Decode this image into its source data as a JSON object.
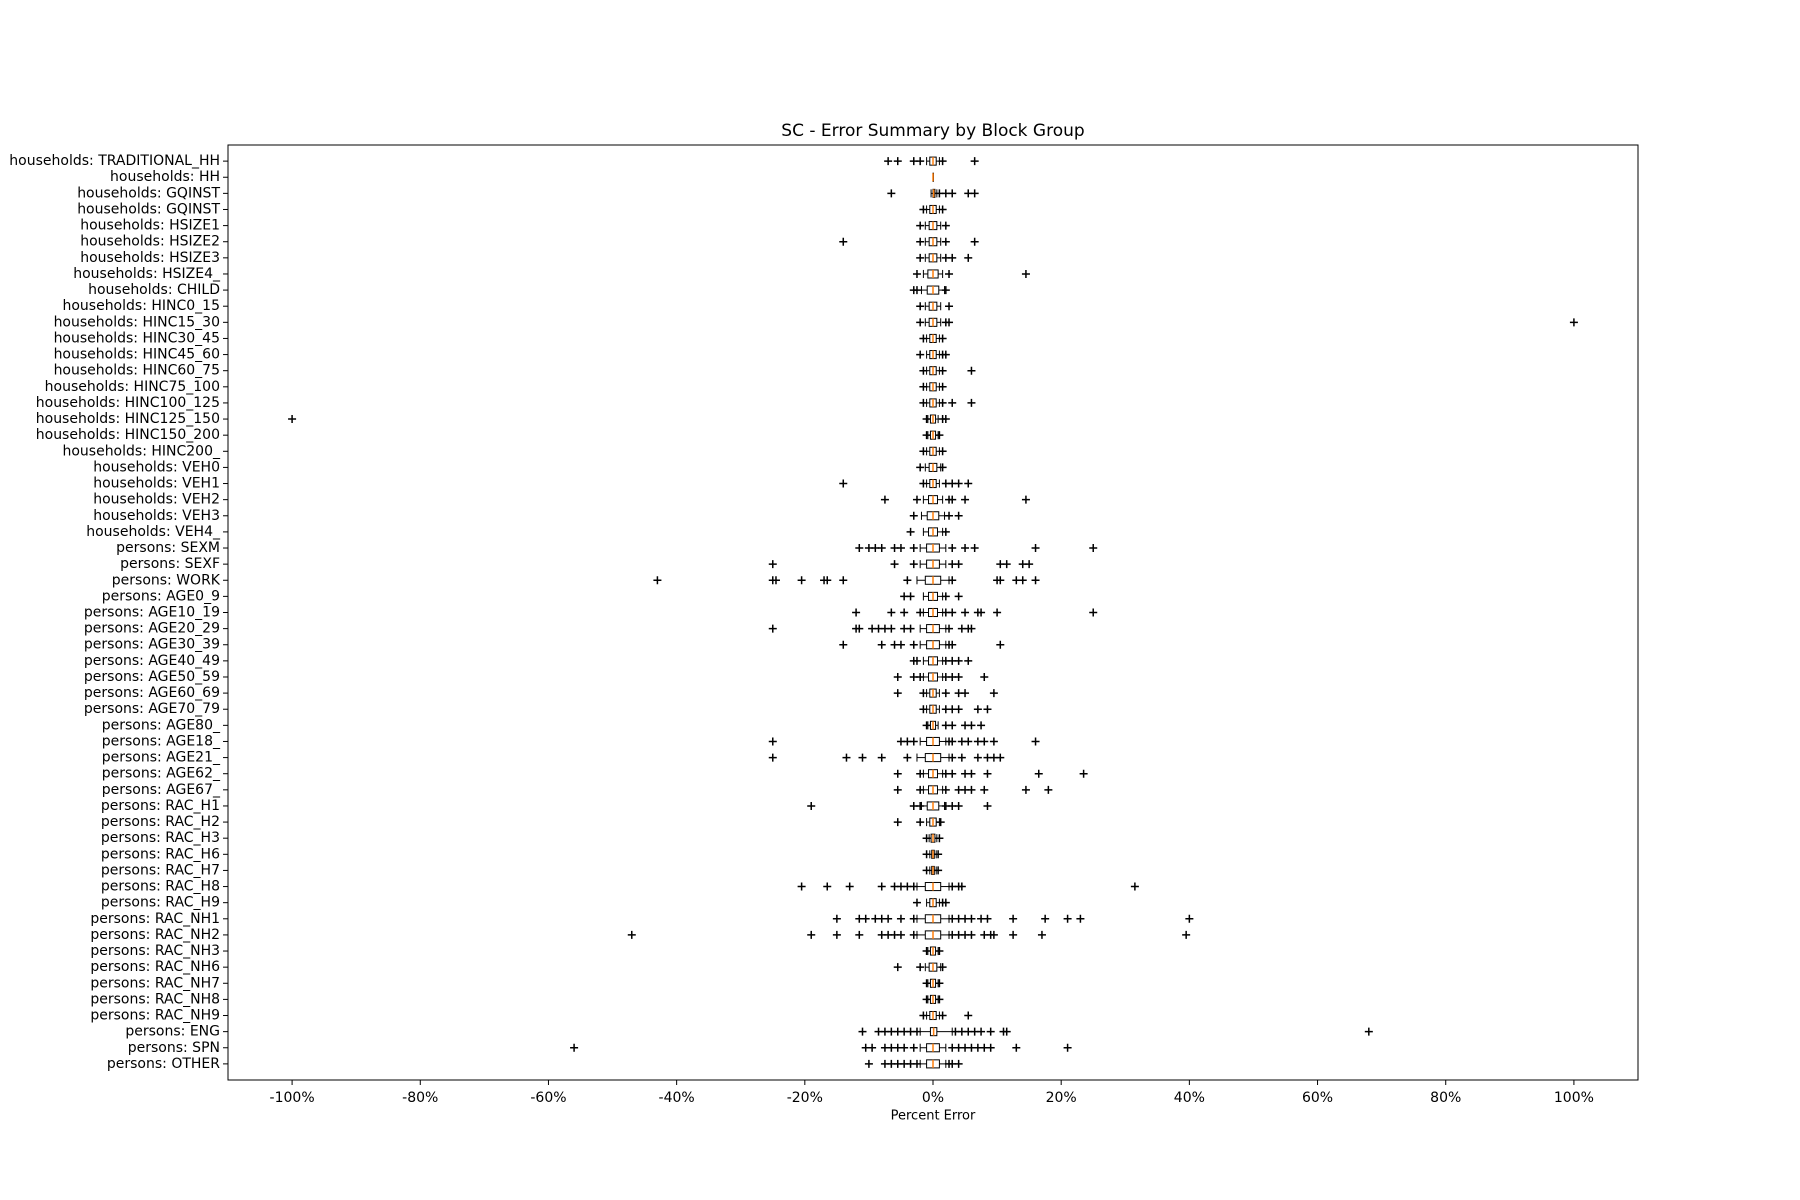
{
  "chart_data": {
    "type": "boxplot",
    "title": "SC - Error Summary by Block Group",
    "xlabel": "Percent Error",
    "xlim": [
      -110,
      110
    ],
    "xticks": [
      {
        "value": -100,
        "label": "-100%"
      },
      {
        "value": -80,
        "label": "-80%"
      },
      {
        "value": -60,
        "label": "-60%"
      },
      {
        "value": -40,
        "label": "-40%"
      },
      {
        "value": -20,
        "label": "-20%"
      },
      {
        "value": 0,
        "label": "0%"
      },
      {
        "value": 20,
        "label": "20%"
      },
      {
        "value": 40,
        "label": "40%"
      },
      {
        "value": 60,
        "label": "60%"
      },
      {
        "value": 80,
        "label": "80%"
      },
      {
        "value": 100,
        "label": "100%"
      }
    ],
    "box_color": "#000000",
    "median_color": "#ff7f0e",
    "flier_color": "#000000",
    "categories": [
      "households: TRADITIONAL_HH",
      "households: HH",
      "households: GQINST",
      "households: GQINST",
      "households: HSIZE1",
      "households: HSIZE2",
      "households: HSIZE3",
      "households: HSIZE4_",
      "households: CHILD",
      "households: HINC0_15",
      "households: HINC15_30",
      "households: HINC30_45",
      "households: HINC45_60",
      "households: HINC60_75",
      "households: HINC75_100",
      "households: HINC100_125",
      "households: HINC125_150",
      "households: HINC150_200",
      "households: HINC200_",
      "households: VEH0",
      "households: VEH1",
      "households: VEH2",
      "households: VEH3",
      "households: VEH4_",
      "persons: SEXM",
      "persons: SEXF",
      "persons: WORK",
      "persons: AGE0_9",
      "persons: AGE10_19",
      "persons: AGE20_29",
      "persons: AGE30_39",
      "persons: AGE40_49",
      "persons: AGE50_59",
      "persons: AGE60_69",
      "persons: AGE70_79",
      "persons: AGE80_",
      "persons: AGE18_",
      "persons: AGE21_",
      "persons: AGE62_",
      "persons: AGE67_",
      "persons: RAC_H1",
      "persons: RAC_H2",
      "persons: RAC_H3",
      "persons: RAC_H6",
      "persons: RAC_H7",
      "persons: RAC_H8",
      "persons: RAC_H9",
      "persons: RAC_NH1",
      "persons: RAC_NH2",
      "persons: RAC_NH3",
      "persons: RAC_NH6",
      "persons: RAC_NH7",
      "persons: RAC_NH8",
      "persons: RAC_NH9",
      "persons: ENG",
      "persons: SPN",
      "persons: OTHER"
    ],
    "whislo": [
      -1,
      0,
      -0.3,
      -1,
      -1.2,
      -1.2,
      -1.2,
      -1.5,
      -1.8,
      -1.2,
      -1.2,
      -1,
      -1,
      -1,
      -1,
      -1,
      -0.8,
      -0.8,
      -1,
      -1.2,
      -1,
      -1.5,
      -1.8,
      -1.5,
      -2,
      -2,
      -2.5,
      -1.5,
      -1.5,
      -2,
      -2,
      -1.5,
      -1.5,
      -1,
      -1,
      -0.8,
      -2,
      -2.5,
      -1.5,
      -1.5,
      -1.8,
      -1,
      -0.6,
      -0.5,
      -0.5,
      -2.5,
      -1,
      -2.5,
      -2.5,
      -0.8,
      -1.2,
      -0.8,
      -0.8,
      -1,
      -2,
      -2,
      -2
    ],
    "q1": [
      -0.5,
      0,
      0,
      -0.5,
      -0.6,
      -0.6,
      -0.6,
      -0.8,
      -0.9,
      -0.6,
      -0.6,
      -0.5,
      -0.5,
      -0.5,
      -0.5,
      -0.5,
      -0.4,
      -0.4,
      -0.5,
      -0.6,
      -0.5,
      -0.7,
      -0.9,
      -0.7,
      -1,
      -1,
      -1.2,
      -0.7,
      -0.7,
      -1,
      -1,
      -0.7,
      -0.7,
      -0.5,
      -0.5,
      -0.4,
      -1,
      -1.2,
      -0.7,
      -0.7,
      -0.9,
      -0.5,
      -0.3,
      -0.2,
      -0.2,
      -1.2,
      -0.5,
      -1.2,
      -1.2,
      -0.4,
      -0.6,
      -0.4,
      -0.4,
      -0.5,
      -0.4,
      -1,
      -1
    ],
    "median": [
      0,
      0,
      0.1,
      0,
      0,
      0,
      0,
      0,
      0,
      0,
      0,
      0,
      0,
      0,
      0,
      0,
      0,
      0,
      0,
      0,
      0,
      0,
      0,
      0,
      0,
      0,
      0,
      0,
      0,
      0,
      0,
      0,
      0,
      0,
      0,
      0,
      0,
      0,
      0,
      0,
      0,
      0,
      0,
      0,
      0,
      0,
      0,
      0,
      0,
      0,
      0,
      0,
      0,
      0,
      0.1,
      0,
      0
    ],
    "q3": [
      0.5,
      0,
      0.3,
      0.5,
      0.6,
      0.6,
      0.6,
      0.8,
      0.9,
      0.6,
      0.6,
      0.5,
      0.5,
      0.5,
      0.5,
      0.5,
      0.4,
      0.4,
      0.5,
      0.6,
      0.5,
      0.7,
      0.9,
      0.7,
      1,
      1,
      1.2,
      0.7,
      0.7,
      1,
      1,
      0.7,
      0.7,
      0.5,
      0.5,
      0.4,
      1,
      1.2,
      0.7,
      0.7,
      0.9,
      0.5,
      0.3,
      0.2,
      0.2,
      1.2,
      0.5,
      1.2,
      1.2,
      0.4,
      0.6,
      0.4,
      0.4,
      0.5,
      0.6,
      1,
      1
    ],
    "whishi": [
      1,
      0,
      0.6,
      1,
      1.2,
      1.2,
      1.2,
      1.5,
      1.8,
      1.2,
      1.2,
      1,
      1,
      1,
      1,
      1,
      0.8,
      0.8,
      1,
      1.2,
      1,
      1.5,
      1.8,
      1.5,
      2,
      2,
      2.5,
      1.5,
      1.5,
      2,
      2,
      1.5,
      1.5,
      1,
      1,
      0.8,
      2,
      2.5,
      1.5,
      1.5,
      1.8,
      1,
      0.6,
      0.5,
      0.5,
      2.5,
      1,
      2.5,
      2.5,
      0.8,
      1.2,
      0.8,
      0.8,
      1,
      3,
      2,
      2
    ],
    "fliers": [
      [
        -7,
        -5.5,
        -3,
        -2,
        1.5,
        6.5
      ],
      [],
      [
        -6.5,
        1,
        2,
        3,
        5.5,
        6.5
      ],
      [
        -1.5,
        1.5
      ],
      [
        -2,
        2
      ],
      [
        -14,
        -2,
        2,
        6.5
      ],
      [
        -2,
        2,
        3,
        5.5
      ],
      [
        -2.5,
        2.5,
        14.5
      ],
      [
        -3,
        -2.5,
        2
      ],
      [
        -2,
        2.5
      ],
      [
        -2,
        2,
        2.5,
        100
      ],
      [
        -1.5,
        1.5
      ],
      [
        -2,
        1.5,
        2
      ],
      [
        -1.5,
        1.5,
        6
      ],
      [
        -1.5,
        1.5
      ],
      [
        -1.5,
        1.5,
        3,
        6
      ],
      [
        -100,
        -1,
        1.5,
        2
      ],
      [
        -1,
        1
      ],
      [
        -1.5,
        1.5
      ],
      [
        -2,
        1.5
      ],
      [
        -14,
        -1.5,
        2,
        3,
        4,
        5.5
      ],
      [
        -7.5,
        -2.5,
        2.5,
        3,
        5,
        14.5
      ],
      [
        -3,
        2.5,
        4
      ],
      [
        -3.5,
        2
      ],
      [
        -11.5,
        -10,
        -9,
        -8,
        -6,
        -5,
        -3,
        3,
        5,
        6.5,
        16,
        25
      ],
      [
        -25,
        -6,
        -3,
        3,
        4,
        10.5,
        11.5,
        14,
        15
      ],
      [
        -43,
        -25,
        -24.5,
        -20.5,
        -17,
        -16.5,
        -14,
        -4,
        3,
        10,
        10.5,
        13,
        14,
        16
      ],
      [
        -4.5,
        -3.5,
        2,
        4
      ],
      [
        -12,
        -6.5,
        -4.5,
        -2,
        2,
        3,
        5,
        7,
        7.5,
        10,
        25
      ],
      [
        -25,
        -12,
        -11.5,
        -9.5,
        -8.5,
        -7.5,
        -6.5,
        -4.5,
        -3.5,
        2.5,
        4.5,
        5.5,
        6
      ],
      [
        -14,
        -8,
        -6,
        -5,
        -3,
        2.5,
        3,
        10.5
      ],
      [
        -3,
        -2.5,
        2,
        3,
        4,
        5.5
      ],
      [
        -5.5,
        -3,
        -2,
        2,
        3,
        4,
        8
      ],
      [
        -5.5,
        -1.5,
        2,
        4,
        5,
        9.5
      ],
      [
        -1.5,
        2,
        3,
        4,
        7,
        8.5
      ],
      [
        -1,
        2,
        3,
        5,
        6,
        7.5
      ],
      [
        -25,
        -5,
        -4,
        -3,
        2.5,
        3,
        4.5,
        5.5,
        7,
        8,
        9.5,
        16
      ],
      [
        -25,
        -13.5,
        -11,
        -8,
        -4,
        3,
        4.5,
        7,
        8.5,
        9.5,
        10.5
      ],
      [
        -5.5,
        -2,
        2,
        3,
        5,
        6,
        8.5,
        16.5,
        23.5
      ],
      [
        -5.5,
        -2,
        2,
        4,
        5,
        6,
        8,
        14.5,
        18
      ],
      [
        -19,
        -3,
        -2,
        2,
        3,
        4,
        8.5
      ],
      [
        -5.5,
        -2,
        1.2
      ],
      [
        -1,
        1
      ],
      [
        -1,
        0.8
      ],
      [
        -1,
        0.8
      ],
      [
        -20.5,
        -16.5,
        -13,
        -8,
        -6,
        -5,
        -4,
        -3,
        3,
        4,
        4.5,
        31.5
      ],
      [
        -2.5,
        1.5,
        2
      ],
      [
        -15,
        -11.5,
        -10.5,
        -9,
        -8,
        -7,
        -5,
        -3,
        3,
        4,
        5,
        6,
        7.5,
        8.5,
        12.5,
        17.5,
        21,
        23,
        40
      ],
      [
        -47,
        -19,
        -15,
        -11.5,
        -8,
        -7,
        -6,
        -5,
        -3,
        3,
        4,
        5,
        6,
        8,
        9,
        9.5,
        12.5,
        17,
        39.5
      ],
      [
        -1,
        1
      ],
      [
        -5.5,
        -2,
        1.5
      ],
      [
        -1,
        1
      ],
      [
        -1,
        1
      ],
      [
        -1.5,
        1.5,
        5.5
      ],
      [
        -11,
        -8.5,
        -7.5,
        -6.5,
        -5.5,
        -4.5,
        -3.5,
        -2.5,
        3.5,
        4.5,
        5.5,
        6.5,
        7.5,
        9,
        11,
        11.5,
        68
      ],
      [
        -56,
        -10.5,
        -9.5,
        -7.5,
        -6.5,
        -5.5,
        -4.5,
        -3,
        3,
        4,
        5,
        6,
        7,
        8,
        9,
        13,
        21
      ],
      [
        -10,
        -7.5,
        -6.5,
        -5.5,
        -4.5,
        -3.5,
        -2.5,
        2.5,
        3,
        4
      ]
    ]
  }
}
